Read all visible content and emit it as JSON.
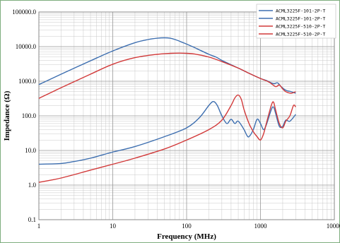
{
  "chart_data": {
    "type": "line",
    "xlabel": "Frequency (MHz)",
    "ylabel": "Impedance (Ω)",
    "x_scale": "log",
    "y_scale": "log",
    "xlim": [
      1,
      10000
    ],
    "ylim": [
      0.1,
      100000
    ],
    "x_tick_labels": [
      "1",
      "10",
      "100",
      "1000",
      "10000"
    ],
    "y_tick_labels": [
      "0.1",
      "1.0",
      "10.0",
      "100.0",
      "1000.0",
      "10000.0",
      "100000.0"
    ],
    "grid": true,
    "legend_position": "top-right",
    "colors": {
      "blue": "#3e6fb0",
      "red": "#d23a3a",
      "grid": "#c8c8c8",
      "frame": "#7fae7f"
    },
    "series": [
      {
        "name": "ACML3225F-101-2P-T",
        "color": "#3e6fb0",
        "x": [
          1,
          2,
          5,
          10,
          20,
          30,
          40,
          50,
          60,
          70,
          90,
          120,
          200,
          250,
          300,
          400,
          500,
          700,
          1000,
          1200,
          1500,
          1700,
          1900,
          2200,
          2600,
          3000
        ],
        "y": [
          800,
          1600,
          3900,
          7500,
          13000,
          16000,
          17500,
          18000,
          17500,
          16000,
          13000,
          10000,
          6000,
          5000,
          4000,
          3000,
          2400,
          1700,
          1200,
          1050,
          850,
          900,
          700,
          550,
          500,
          450
        ]
      },
      {
        "name": "ACML3225F-101-2P-T",
        "color": "#3e6fb0",
        "x": [
          1,
          2,
          3,
          5,
          10,
          20,
          50,
          100,
          150,
          200,
          230,
          260,
          300,
          350,
          400,
          450,
          500,
          600,
          650,
          700,
          800,
          900,
          1000,
          1100,
          1200,
          1400,
          1500,
          1600,
          1800,
          2000,
          2200,
          2500,
          3000
        ],
        "y": [
          4,
          4.2,
          4.8,
          6,
          9,
          13,
          25,
          45,
          90,
          200,
          260,
          200,
          100,
          60,
          80,
          60,
          70,
          40,
          28,
          25,
          40,
          80,
          60,
          40,
          55,
          150,
          180,
          120,
          50,
          50,
          75,
          70,
          110
        ]
      },
      {
        "name": "ACML3225F-510-2P-T",
        "color": "#d23a3a",
        "x": [
          1,
          2,
          5,
          10,
          20,
          40,
          60,
          80,
          100,
          130,
          200,
          300,
          500,
          700,
          1000,
          1300,
          1600,
          1800,
          2000,
          2200,
          2600,
          3000
        ],
        "y": [
          320,
          650,
          1600,
          3100,
          4800,
          6000,
          6400,
          6500,
          6400,
          6100,
          5000,
          3700,
          2400,
          1700,
          1200,
          950,
          700,
          780,
          600,
          500,
          450,
          500
        ]
      },
      {
        "name": "ACML3225F-510-2P-T",
        "color": "#d23a3a",
        "x": [
          1,
          2,
          5,
          10,
          20,
          50,
          100,
          200,
          300,
          400,
          450,
          500,
          550,
          600,
          700,
          800,
          900,
          1000,
          1100,
          1200,
          1400,
          1500,
          1600,
          1800,
          2000,
          2200,
          2500,
          2800,
          3000
        ],
        "y": [
          1.2,
          1.6,
          2.7,
          4,
          6,
          11,
          20,
          40,
          75,
          200,
          330,
          400,
          300,
          150,
          60,
          35,
          25,
          20,
          30,
          60,
          200,
          250,
          150,
          60,
          45,
          70,
          100,
          200,
          180
        ]
      }
    ]
  }
}
